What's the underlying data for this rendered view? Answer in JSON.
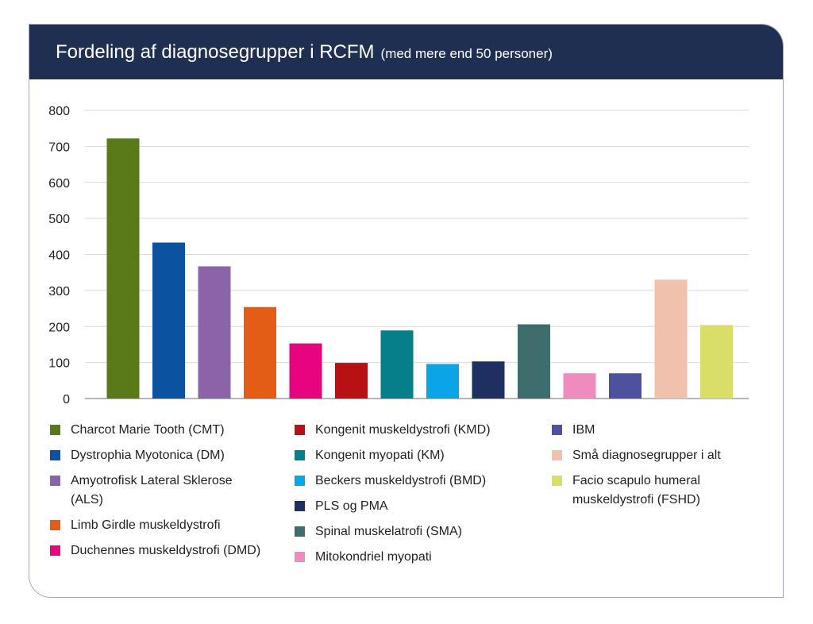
{
  "header": {
    "title": "Fordeling af diagnosegrupper i RCFM",
    "subtitle": "(med mere end 50 personer)"
  },
  "chart_data": {
    "type": "bar",
    "title": "Fordeling af diagnosegrupper i RCFM",
    "subtitle": "(med mere end 50 personer)",
    "xlabel": "",
    "ylabel": "",
    "ylim": [
      0,
      800
    ],
    "yticks": [
      "0",
      "100",
      "200",
      "300",
      "400",
      "500",
      "600",
      "700",
      "800"
    ],
    "grid": true,
    "legend_position": "bottom",
    "categories": [
      "Charcot Marie Tooth (CMT)",
      "Dystrophia Myotonica (DM)",
      "Amyotrofisk Lateral Sklerose (ALS)",
      "Limb Girdle muskeldystrofi",
      "Duchennes muskeldystrofi (DMD)",
      "Kongenit muskeldystrofi (KMD)",
      "Kongenit myopati (KM)",
      "Beckers muskeldystrofi (BMD)",
      "PLS og PMA",
      "Spinal muskelatrofi (SMA)",
      "Mitokondriel myopati",
      "IBM",
      "Små diagnosegrupper i alt",
      "Facio scapulo humeral muskeldystrofi (FSHD)"
    ],
    "values": [
      722,
      433,
      367,
      254,
      153,
      99,
      189,
      96,
      103,
      206,
      70,
      70,
      330,
      204
    ],
    "colors": [
      "#5a7a19",
      "#0b52a1",
      "#8b63a8",
      "#e35e14",
      "#e6057d",
      "#b81115",
      "#067f8a",
      "#0ba4e4",
      "#1f2f62",
      "#3f6d6e",
      "#ef8bbd",
      "#4e529e",
      "#f0c2ad",
      "#d9de66"
    ],
    "legend": {
      "columns": [
        [
          {
            "label": "Charcot Marie Tooth (CMT)",
            "color": "#5a7a19"
          },
          {
            "label": "Dystrophia Myotonica (DM)",
            "color": "#0b52a1"
          },
          {
            "label": "Amyotrofisk Lateral Sklerose (ALS)",
            "color": "#8b63a8"
          },
          {
            "label": "Limb Girdle muskeldystrofi",
            "color": "#e35e14"
          },
          {
            "label": "Duchennes muskeldystrofi (DMD)",
            "color": "#e6057d"
          }
        ],
        [
          {
            "label": "Kongenit muskeldystrofi (KMD)",
            "color": "#b81115"
          },
          {
            "label": "Kongenit myopati (KM)",
            "color": "#067f8a"
          },
          {
            "label": "Beckers muskeldystrofi (BMD)",
            "color": "#0ba4e4"
          },
          {
            "label": "PLS og PMA",
            "color": "#1f2f62"
          },
          {
            "label": "Spinal muskelatrofi (SMA)",
            "color": "#3f6d6e"
          },
          {
            "label": "Mitokondriel myopati",
            "color": "#ef8bbd"
          }
        ],
        [
          {
            "label": "IBM",
            "color": "#4e529e"
          },
          {
            "label": "Små diagnosegrupper i alt",
            "color": "#f0c2ad"
          },
          {
            "label": "Facio scapulo humeral muskeldystrofi (FSHD)",
            "color": "#d9de66"
          }
        ]
      ]
    }
  }
}
